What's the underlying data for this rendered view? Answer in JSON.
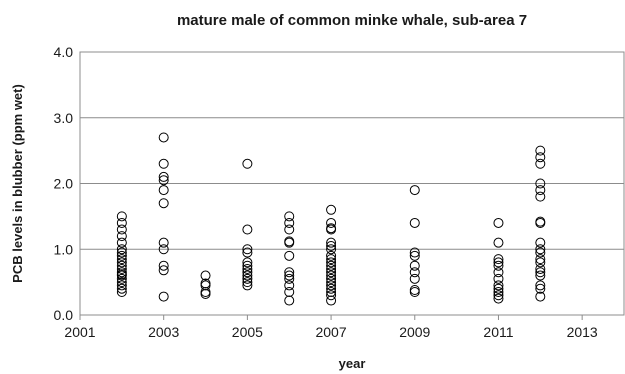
{
  "chart_data": {
    "type": "scatter",
    "title": "mature male of common minke whale, sub-area 7",
    "xlabel": "year",
    "ylabel": "PCB levels in blubber (ppm wet)",
    "xlim": [
      2001,
      2014
    ],
    "ylim": [
      0,
      4
    ],
    "xticks": [
      2001,
      2003,
      2005,
      2007,
      2009,
      2011,
      2013
    ],
    "yticks": [
      0,
      1,
      2,
      3,
      4
    ],
    "xtick_labels": [
      "2001",
      "2003",
      "2005",
      "2007",
      "2009",
      "2011",
      "2013"
    ],
    "ytick_labels": [
      "0.0",
      "1.0",
      "2.0",
      "3.0",
      "4.0"
    ],
    "grid": "horizontal",
    "legend": "none",
    "marker": "open-circle",
    "marker_color": "#000000",
    "series": [
      {
        "points": [
          [
            2002,
            0.35
          ],
          [
            2002,
            0.4
          ],
          [
            2002,
            0.45
          ],
          [
            2002,
            0.5
          ],
          [
            2002,
            0.55
          ],
          [
            2002,
            0.6
          ],
          [
            2002,
            0.62
          ],
          [
            2002,
            0.65
          ],
          [
            2002,
            0.7
          ],
          [
            2002,
            0.75
          ],
          [
            2002,
            0.8
          ],
          [
            2002,
            0.85
          ],
          [
            2002,
            0.9
          ],
          [
            2002,
            0.95
          ],
          [
            2002,
            1.0
          ],
          [
            2002,
            1.1
          ],
          [
            2002,
            1.2
          ],
          [
            2002,
            1.3
          ],
          [
            2002,
            1.4
          ],
          [
            2002,
            1.5
          ],
          [
            2003,
            0.28
          ],
          [
            2003,
            0.68
          ],
          [
            2003,
            0.75
          ],
          [
            2003,
            1.0
          ],
          [
            2003,
            1.1
          ],
          [
            2003,
            1.7
          ],
          [
            2003,
            1.9
          ],
          [
            2003,
            2.05
          ],
          [
            2003,
            2.1
          ],
          [
            2003,
            2.3
          ],
          [
            2003,
            2.7
          ],
          [
            2004,
            0.32
          ],
          [
            2004,
            0.35
          ],
          [
            2004,
            0.45
          ],
          [
            2004,
            0.48
          ],
          [
            2004,
            0.6
          ],
          [
            2005,
            0.45
          ],
          [
            2005,
            0.5
          ],
          [
            2005,
            0.55
          ],
          [
            2005,
            0.6
          ],
          [
            2005,
            0.65
          ],
          [
            2005,
            0.7
          ],
          [
            2005,
            0.75
          ],
          [
            2005,
            0.8
          ],
          [
            2005,
            0.95
          ],
          [
            2005,
            1.0
          ],
          [
            2005,
            1.3
          ],
          [
            2005,
            2.3
          ],
          [
            2006,
            0.22
          ],
          [
            2006,
            0.35
          ],
          [
            2006,
            0.45
          ],
          [
            2006,
            0.55
          ],
          [
            2006,
            0.6
          ],
          [
            2006,
            0.65
          ],
          [
            2006,
            0.9
          ],
          [
            2006,
            1.1
          ],
          [
            2006,
            1.12
          ],
          [
            2006,
            1.3
          ],
          [
            2006,
            1.4
          ],
          [
            2006,
            1.5
          ],
          [
            2007,
            0.22
          ],
          [
            2007,
            0.3
          ],
          [
            2007,
            0.35
          ],
          [
            2007,
            0.4
          ],
          [
            2007,
            0.45
          ],
          [
            2007,
            0.5
          ],
          [
            2007,
            0.55
          ],
          [
            2007,
            0.6
          ],
          [
            2007,
            0.65
          ],
          [
            2007,
            0.7
          ],
          [
            2007,
            0.75
          ],
          [
            2007,
            0.8
          ],
          [
            2007,
            0.85
          ],
          [
            2007,
            0.9
          ],
          [
            2007,
            1.0
          ],
          [
            2007,
            1.05
          ],
          [
            2007,
            1.1
          ],
          [
            2007,
            1.3
          ],
          [
            2007,
            1.32
          ],
          [
            2007,
            1.4
          ],
          [
            2007,
            1.6
          ],
          [
            2009,
            0.35
          ],
          [
            2009,
            0.38
          ],
          [
            2009,
            0.55
          ],
          [
            2009,
            0.65
          ],
          [
            2009,
            0.75
          ],
          [
            2009,
            0.9
          ],
          [
            2009,
            0.95
          ],
          [
            2009,
            1.4
          ],
          [
            2009,
            1.9
          ],
          [
            2011,
            0.25
          ],
          [
            2011,
            0.3
          ],
          [
            2011,
            0.35
          ],
          [
            2011,
            0.4
          ],
          [
            2011,
            0.45
          ],
          [
            2011,
            0.55
          ],
          [
            2011,
            0.65
          ],
          [
            2011,
            0.75
          ],
          [
            2011,
            0.8
          ],
          [
            2011,
            0.85
          ],
          [
            2011,
            1.1
          ],
          [
            2011,
            1.4
          ],
          [
            2012,
            0.28
          ],
          [
            2012,
            0.4
          ],
          [
            2012,
            0.45
          ],
          [
            2012,
            0.6
          ],
          [
            2012,
            0.65
          ],
          [
            2012,
            0.7
          ],
          [
            2012,
            0.8
          ],
          [
            2012,
            0.85
          ],
          [
            2012,
            0.95
          ],
          [
            2012,
            1.0
          ],
          [
            2012,
            1.1
          ],
          [
            2012,
            1.4
          ],
          [
            2012,
            1.42
          ],
          [
            2012,
            1.8
          ],
          [
            2012,
            1.9
          ],
          [
            2012,
            2.0
          ],
          [
            2012,
            2.3
          ],
          [
            2012,
            2.4
          ],
          [
            2012,
            2.5
          ]
        ]
      }
    ]
  }
}
